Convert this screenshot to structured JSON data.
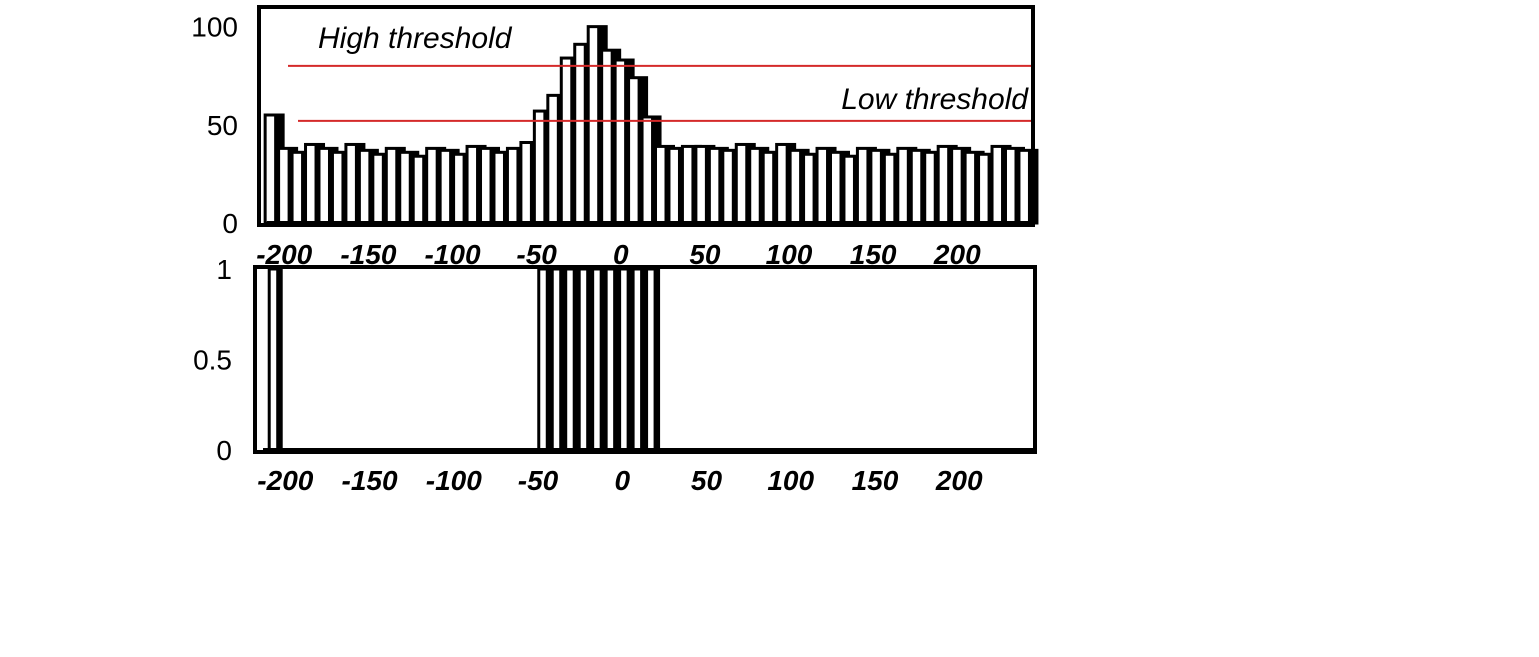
{
  "chart_data": [
    {
      "type": "bar",
      "x_ticks": [
        "-200",
        "-150",
        "-100",
        "-50",
        "0",
        "50",
        "100",
        "150",
        "200"
      ],
      "y_ticks": [
        "0",
        "50",
        "100"
      ],
      "ylim": [
        0,
        110
      ],
      "xlim": [
        -215,
        245
      ],
      "x": [
        -206,
        -198,
        -190,
        -182,
        -174,
        -166,
        -158,
        -150,
        -142,
        -134,
        -126,
        -118,
        -110,
        -102,
        -94,
        -86,
        -78,
        -70,
        -62,
        -54,
        -46,
        -38,
        -30,
        -22,
        -14,
        -6,
        2,
        10,
        18,
        26,
        34,
        42,
        50,
        58,
        66,
        74,
        82,
        90,
        98,
        106,
        114,
        122,
        130,
        138,
        146,
        154,
        162,
        170,
        178,
        186,
        194,
        202,
        210,
        218,
        226,
        234,
        242
      ],
      "values": [
        55,
        38,
        36,
        40,
        38,
        36,
        40,
        37,
        35,
        38,
        36,
        34,
        38,
        37,
        35,
        39,
        38,
        36,
        38,
        41,
        57,
        65,
        84,
        91,
        100,
        88,
        83,
        74,
        54,
        39,
        38,
        39,
        39,
        38,
        37,
        40,
        38,
        36,
        40,
        37,
        35,
        38,
        36,
        34,
        38,
        37,
        35,
        38,
        37,
        36,
        39,
        38,
        36,
        35,
        39,
        38,
        37
      ],
      "annotations": [
        {
          "text": "High threshold",
          "value": 80
        },
        {
          "text": "Low threshold",
          "value": 52
        }
      ],
      "colors": {
        "bar": "#000000",
        "threshold": "#d42a2a"
      }
    },
    {
      "type": "bar",
      "x_ticks": [
        "-200",
        "-150",
        "-100",
        "-50",
        "0",
        "50",
        "100",
        "150",
        "200"
      ],
      "y_ticks": [
        "0",
        "0.5",
        "1"
      ],
      "ylim": [
        0,
        1
      ],
      "xlim": [
        -218,
        245
      ],
      "x": [
        -206,
        -198,
        -190,
        -182,
        -174,
        -166,
        -158,
        -150,
        -142,
        -134,
        -126,
        -118,
        -110,
        -102,
        -94,
        -86,
        -78,
        -70,
        -62,
        -54,
        -46,
        -38,
        -30,
        -22,
        -14,
        -6,
        2,
        10,
        18,
        26,
        34,
        42,
        50,
        58,
        66,
        74,
        82,
        90,
        98,
        106,
        114,
        122,
        130,
        138,
        146,
        154,
        162,
        170,
        178,
        186,
        194,
        202,
        210,
        218,
        226,
        234,
        242
      ],
      "values": [
        1,
        0,
        0,
        0,
        0,
        0,
        0,
        0,
        0,
        0,
        0,
        0,
        0,
        0,
        0,
        0,
        0,
        0,
        0,
        0,
        1,
        1,
        1,
        1,
        1,
        1,
        1,
        1,
        1,
        0,
        0,
        0,
        0,
        0,
        0,
        0,
        0,
        0,
        0,
        0,
        0,
        0,
        0,
        0,
        0,
        0,
        0,
        0,
        0,
        0,
        0,
        0,
        0,
        0,
        0,
        0,
        0
      ],
      "colors": {
        "bar": "#000000"
      }
    }
  ]
}
